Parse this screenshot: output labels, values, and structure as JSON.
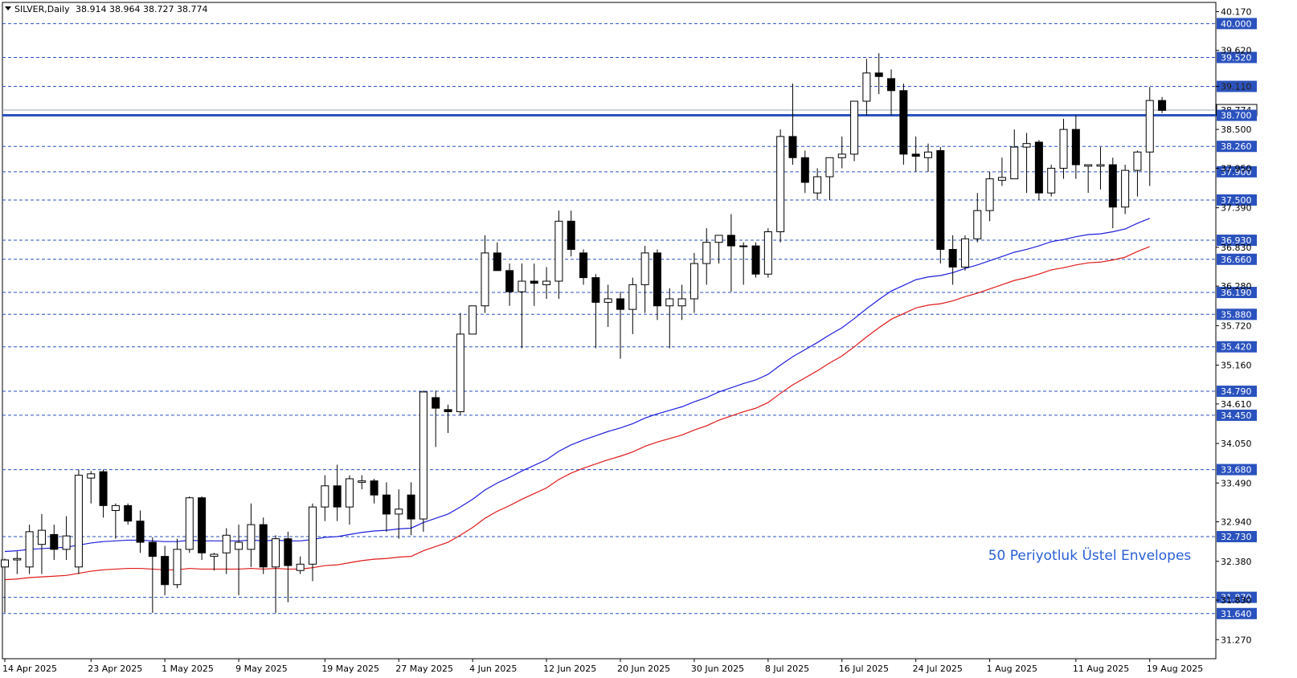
{
  "header": {
    "symbol_timeframe": "SILVER,Daily",
    "ohlc": "38.914 38.964 38.727 38.774"
  },
  "annotation": "50 Periyotluk Üstel Envelopes",
  "colors": {
    "background": "#ffffff",
    "frame": "#000000",
    "candle_up": "#ffffff",
    "candle_down": "#000000",
    "level_line": "#2a52be",
    "key_level": "#2a52be",
    "ema_upper": "#1f1fdd",
    "ema_lower": "#e01a1a",
    "label_bg": "#2a52be",
    "label_text": "#ffffff",
    "annotation_text": "#2a5fd6"
  },
  "chart_data": {
    "type": "candlestick",
    "title": "SILVER,Daily",
    "ylim": [
      31.0,
      40.3
    ],
    "y_ticks": [
      "40.170",
      "39.620",
      "39.110",
      "38.500",
      "37.950",
      "37.390",
      "36.830",
      "36.280",
      "35.720",
      "35.160",
      "34.610",
      "34.050",
      "33.490",
      "32.940",
      "32.380",
      "31.830",
      "31.270"
    ],
    "x_labels": [
      "14 Apr 2025",
      "23 Apr 2025",
      "1 May 2025",
      "9 May 2025",
      "19 May 2025",
      "27 May 2025",
      "4 Jun 2025",
      "12 Jun 2025",
      "20 Jun 2025",
      "30 Jun 2025",
      "8 Jul 2025",
      "16 Jul 2025",
      "24 Jul 2025",
      "1 Aug 2025",
      "11 Aug 2025",
      "19 Aug 2025"
    ],
    "x_label_index": [
      0,
      7,
      13,
      19,
      26,
      32,
      38,
      44,
      50,
      56,
      62,
      68,
      74,
      80,
      87,
      93
    ],
    "current_price": "38.774",
    "key_level": "38.700",
    "levels": [
      "40.000",
      "39.520",
      "39.110",
      "38.260",
      "37.900",
      "37.500",
      "36.930",
      "36.660",
      "36.190",
      "35.880",
      "35.420",
      "34.790",
      "34.450",
      "33.680",
      "32.730",
      "31.870",
      "31.640"
    ],
    "candles": [
      [
        32.3,
        32.42,
        31.65,
        32.4
      ],
      [
        32.4,
        32.52,
        32.2,
        32.42
      ],
      [
        32.3,
        32.9,
        32.2,
        32.8
      ],
      [
        32.62,
        33.05,
        32.2,
        32.82
      ],
      [
        32.76,
        32.9,
        32.4,
        32.55
      ],
      [
        32.55,
        33.02,
        32.4,
        32.74
      ],
      [
        32.3,
        33.68,
        32.2,
        33.6
      ],
      [
        33.56,
        33.66,
        33.2,
        33.62
      ],
      [
        33.65,
        33.68,
        33.0,
        33.17
      ],
      [
        33.1,
        33.2,
        32.7,
        33.17
      ],
      [
        33.17,
        33.2,
        32.9,
        32.95
      ],
      [
        32.95,
        33.1,
        32.5,
        32.65
      ],
      [
        32.65,
        32.72,
        31.65,
        32.45
      ],
      [
        32.45,
        32.6,
        31.9,
        32.05
      ],
      [
        32.05,
        32.7,
        32.0,
        32.55
      ],
      [
        32.55,
        33.3,
        32.5,
        33.28
      ],
      [
        33.28,
        33.3,
        32.4,
        32.5
      ],
      [
        32.45,
        32.5,
        32.25,
        32.48
      ],
      [
        32.5,
        32.85,
        32.2,
        32.75
      ],
      [
        32.55,
        32.9,
        31.9,
        32.65
      ],
      [
        32.55,
        33.2,
        32.3,
        32.9
      ],
      [
        32.9,
        33.0,
        32.2,
        32.3
      ],
      [
        32.3,
        32.75,
        31.65,
        32.7
      ],
      [
        32.7,
        32.8,
        31.8,
        32.32
      ],
      [
        32.25,
        32.45,
        32.2,
        32.34
      ],
      [
        32.34,
        33.2,
        32.1,
        33.15
      ],
      [
        33.15,
        33.6,
        32.95,
        33.45
      ],
      [
        33.45,
        33.75,
        32.95,
        33.15
      ],
      [
        33.15,
        33.6,
        32.9,
        33.55
      ],
      [
        33.5,
        33.6,
        33.4,
        33.52
      ],
      [
        33.52,
        33.55,
        33.2,
        33.32
      ],
      [
        33.32,
        33.5,
        32.8,
        33.05
      ],
      [
        33.05,
        33.4,
        32.7,
        33.12
      ],
      [
        33.32,
        33.5,
        32.75,
        32.98
      ],
      [
        32.98,
        34.8,
        32.8,
        34.78
      ],
      [
        34.7,
        34.8,
        34.0,
        34.55
      ],
      [
        34.53,
        34.6,
        34.2,
        34.5
      ],
      [
        34.5,
        35.9,
        34.45,
        35.6
      ],
      [
        35.6,
        36.0,
        35.6,
        36.0
      ],
      [
        36.0,
        37.0,
        35.9,
        36.75
      ],
      [
        36.75,
        36.9,
        36.5,
        36.5
      ],
      [
        36.5,
        36.6,
        36.0,
        36.2
      ],
      [
        36.2,
        36.6,
        35.4,
        36.35
      ],
      [
        36.35,
        36.6,
        36.0,
        36.32
      ],
      [
        36.3,
        36.55,
        36.1,
        36.35
      ],
      [
        36.35,
        37.35,
        36.1,
        37.2
      ],
      [
        37.2,
        37.35,
        36.7,
        36.8
      ],
      [
        36.75,
        36.8,
        36.3,
        36.4
      ],
      [
        36.4,
        36.45,
        35.4,
        36.05
      ],
      [
        36.05,
        36.3,
        35.7,
        36.1
      ],
      [
        36.1,
        36.2,
        35.25,
        35.95
      ],
      [
        35.95,
        36.4,
        35.6,
        36.3
      ],
      [
        36.3,
        36.85,
        35.9,
        36.75
      ],
      [
        36.75,
        36.8,
        35.8,
        36.0
      ],
      [
        36.0,
        36.25,
        35.4,
        36.1
      ],
      [
        36.0,
        36.3,
        35.8,
        36.1
      ],
      [
        36.1,
        36.75,
        35.9,
        36.6
      ],
      [
        36.6,
        37.1,
        36.3,
        36.9
      ],
      [
        36.9,
        37.0,
        36.6,
        37.0
      ],
      [
        37.0,
        37.3,
        36.2,
        36.85
      ],
      [
        36.85,
        36.9,
        36.3,
        36.85
      ],
      [
        36.85,
        36.9,
        36.4,
        36.45
      ],
      [
        36.45,
        37.1,
        36.4,
        37.05
      ],
      [
        37.05,
        38.5,
        36.9,
        38.4
      ],
      [
        38.4,
        39.15,
        38.0,
        38.1
      ],
      [
        38.1,
        38.2,
        37.6,
        37.75
      ],
      [
        37.6,
        37.95,
        37.5,
        37.83
      ],
      [
        37.83,
        38.1,
        37.5,
        38.1
      ],
      [
        38.1,
        38.4,
        37.95,
        38.15
      ],
      [
        38.15,
        38.9,
        38.05,
        38.9
      ],
      [
        38.9,
        39.5,
        38.7,
        39.3
      ],
      [
        39.3,
        39.58,
        39.0,
        39.25
      ],
      [
        39.22,
        39.35,
        38.7,
        39.05
      ],
      [
        39.05,
        39.15,
        38.0,
        38.15
      ],
      [
        38.15,
        38.4,
        37.9,
        38.12
      ],
      [
        38.1,
        38.3,
        37.9,
        38.18
      ],
      [
        38.2,
        38.25,
        36.6,
        36.8
      ],
      [
        36.8,
        37.0,
        36.3,
        36.55
      ],
      [
        36.55,
        37.0,
        36.5,
        36.95
      ],
      [
        36.95,
        37.6,
        36.9,
        37.35
      ],
      [
        37.35,
        37.9,
        37.2,
        37.8
      ],
      [
        37.78,
        38.1,
        37.7,
        37.82
      ],
      [
        37.8,
        38.5,
        37.8,
        38.25
      ],
      [
        38.25,
        38.45,
        37.6,
        38.3
      ],
      [
        38.32,
        38.35,
        37.5,
        37.6
      ],
      [
        37.6,
        38.0,
        37.55,
        37.95
      ],
      [
        37.95,
        38.65,
        37.8,
        38.5
      ],
      [
        38.5,
        38.7,
        37.8,
        38.0
      ],
      [
        37.98,
        38.0,
        37.6,
        38.0
      ],
      [
        37.98,
        38.25,
        37.65,
        38.0
      ],
      [
        38.0,
        38.1,
        37.1,
        37.4
      ],
      [
        37.4,
        38.0,
        37.3,
        37.92
      ],
      [
        37.92,
        38.2,
        37.55,
        38.18
      ],
      [
        38.18,
        39.1,
        37.7,
        38.91
      ],
      [
        38.91,
        38.96,
        38.73,
        38.77
      ]
    ],
    "series": [
      {
        "values": [
          32.52,
          32.53,
          32.55,
          32.56,
          32.57,
          32.58,
          32.61,
          32.64,
          32.66,
          32.67,
          32.68,
          32.68,
          32.67,
          32.66,
          32.66,
          32.68,
          32.67,
          32.67,
          32.67,
          32.67,
          32.68,
          32.67,
          32.68,
          32.67,
          32.67,
          32.69,
          32.72,
          32.73,
          32.76,
          32.79,
          32.81,
          32.82,
          32.84,
          32.85,
          32.93,
          32.99,
          33.05,
          33.15,
          33.26,
          33.39,
          33.49,
          33.57,
          33.66,
          33.74,
          33.82,
          33.94,
          34.03,
          34.1,
          34.16,
          34.22,
          34.27,
          34.33,
          34.41,
          34.47,
          34.52,
          34.57,
          34.64,
          34.7,
          34.78,
          34.84,
          34.9,
          34.95,
          35.03,
          35.16,
          35.28,
          35.38,
          35.48,
          35.59,
          35.69,
          35.82,
          35.96,
          36.09,
          36.21,
          36.29,
          36.37,
          36.41,
          36.43,
          36.47,
          36.53,
          36.58,
          36.64,
          36.7,
          36.76,
          36.8,
          36.85,
          36.91,
          36.94,
          36.98,
          37.01,
          37.02,
          37.05,
          37.09,
          37.17,
          37.24
        ]
      },
      {
        "values": [
          32.12,
          32.13,
          32.15,
          32.16,
          32.17,
          32.18,
          32.21,
          32.24,
          32.26,
          32.27,
          32.28,
          32.28,
          32.27,
          32.26,
          32.26,
          32.28,
          32.27,
          32.27,
          32.27,
          32.27,
          32.28,
          32.27,
          32.28,
          32.27,
          32.27,
          32.29,
          32.32,
          32.33,
          32.36,
          32.39,
          32.41,
          32.42,
          32.44,
          32.45,
          32.53,
          32.59,
          32.65,
          32.75,
          32.86,
          32.99,
          33.09,
          33.17,
          33.26,
          33.34,
          33.42,
          33.54,
          33.63,
          33.7,
          33.76,
          33.82,
          33.87,
          33.93,
          34.01,
          34.07,
          34.12,
          34.17,
          34.24,
          34.3,
          34.38,
          34.44,
          34.5,
          34.55,
          34.63,
          34.76,
          34.88,
          34.98,
          35.08,
          35.19,
          35.29,
          35.42,
          35.56,
          35.69,
          35.81,
          35.89,
          35.97,
          36.01,
          36.03,
          36.07,
          36.13,
          36.18,
          36.24,
          36.3,
          36.36,
          36.4,
          36.45,
          36.51,
          36.54,
          36.58,
          36.61,
          36.62,
          36.65,
          36.69,
          36.77,
          36.84
        ]
      }
    ],
    "grid": false,
    "legend": "none"
  }
}
